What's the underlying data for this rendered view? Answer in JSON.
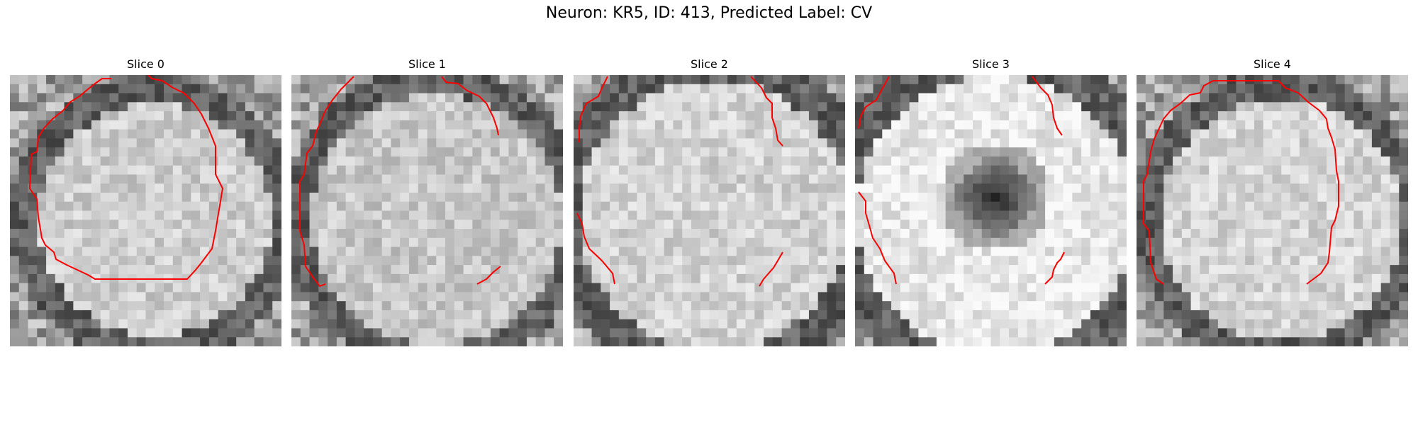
{
  "figure": {
    "title": "Neuron: KR5, ID: 413, Predicted Label: CV",
    "contour_color": "#ff0000"
  },
  "slices": [
    {
      "title": "Slice 0",
      "dark_center": false
    },
    {
      "title": "Slice 1",
      "dark_center": false
    },
    {
      "title": "Slice 2",
      "dark_center": false
    },
    {
      "title": "Slice 3",
      "dark_center": true
    },
    {
      "title": "Slice 4",
      "dark_center": false
    }
  ]
}
